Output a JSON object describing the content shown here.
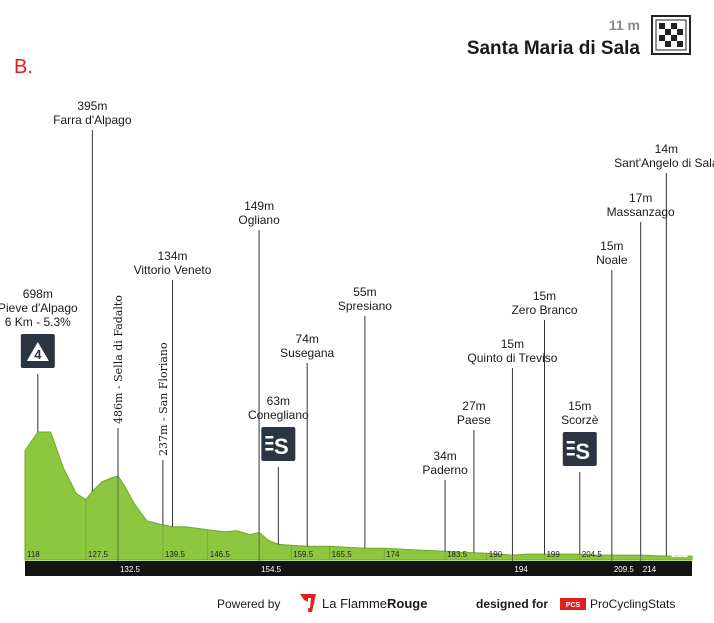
{
  "panel_marker": "B.",
  "finish": {
    "altitude": "11 m",
    "name": "Santa Maria di Sala",
    "icon": "checkered-flag-icon"
  },
  "footer": {
    "powered_by": "Powered by",
    "brand_light": "La Flamme",
    "brand_bold": "Rouge",
    "designed_for": "designed for",
    "pcs_badge": "PCS",
    "pcs_name": "ProCyclingStats"
  },
  "colors": {
    "profile": "#8dc63f",
    "profile_dark": "#6fa82a",
    "axis_bar": "#141414",
    "badge": "#2b3442",
    "marker": "#e0201b"
  },
  "chart_data": {
    "type": "area",
    "xlim": [
      118,
      222
    ],
    "profile_km": [
      118,
      120,
      122,
      124,
      126,
      127.5,
      128.5,
      130,
      131.5,
      132.5,
      133.5,
      135,
      137,
      139.5,
      141,
      143,
      146.5,
      149,
      151,
      152,
      153,
      154.5,
      156,
      157.5,
      159.5,
      162,
      165.5,
      168,
      171,
      174,
      177,
      180,
      183.5,
      186,
      190,
      192,
      194,
      196,
      199,
      202,
      204.5,
      207,
      209.5,
      212,
      214,
      218,
      222
    ],
    "profile_rel": [
      0.0,
      0.655,
      0.655,
      0.47,
      0.34,
      0.31,
      0.35,
      0.4,
      0.42,
      0.43,
      0.38,
      0.29,
      0.2,
      0.18,
      0.17,
      0.17,
      0.155,
      0.145,
      0.15,
      0.14,
      0.13,
      0.14,
      0.1,
      0.08,
      0.075,
      0.07,
      0.07,
      0.065,
      0.06,
      0.06,
      0.055,
      0.05,
      0.045,
      0.04,
      0.035,
      0.03,
      0.025,
      0.03,
      0.03,
      0.03,
      0.03,
      0.025,
      0.025,
      0.025,
      0.025,
      0.02,
      0.02
    ],
    "ticks_top": [
      "118",
      "127.5",
      "139.5",
      "146.5",
      "159.5",
      "165.5",
      "174",
      "183.5",
      "190",
      "199",
      "204.5"
    ],
    "ticks_bottom": [
      "132.5",
      "154.5",
      "194",
      "209.5",
      "214"
    ],
    "tick_end": "222",
    "waypoints": [
      {
        "km": 120,
        "lines": [
          "698m",
          "Pieve d'Alpago",
          "6 Km - 5.3%"
        ],
        "badge": "4",
        "badge_icon": "mountain-cat-4-icon"
      },
      {
        "km": 128.5,
        "lines": [
          "395m",
          "Farra d'Alpago"
        ]
      },
      {
        "km": 141,
        "lines": [
          "134m",
          "Vittorio Veneto"
        ]
      },
      {
        "km": 154.5,
        "lines": [
          "149m",
          "Ogliano"
        ]
      },
      {
        "km": 157.5,
        "lines": [
          "63m",
          "Conegliano"
        ],
        "badge": "S",
        "badge_icon": "sprint-icon"
      },
      {
        "km": 162,
        "lines": [
          "74m",
          "Susegana"
        ]
      },
      {
        "km": 171,
        "lines": [
          "55m",
          "Spresiano"
        ]
      },
      {
        "km": 183.5,
        "lines": [
          "34m",
          "Paderno"
        ]
      },
      {
        "km": 188,
        "lines": [
          "27m",
          "Paese"
        ]
      },
      {
        "km": 194,
        "lines": [
          "15m",
          "Quinto di Treviso"
        ]
      },
      {
        "km": 199,
        "lines": [
          "15m",
          "Zero Branco"
        ]
      },
      {
        "km": 204.5,
        "lines": [
          "15m",
          "Scorzè"
        ],
        "badge": "S",
        "badge_icon": "sprint-icon"
      },
      {
        "km": 209.5,
        "lines": [
          "15m",
          "Noale"
        ]
      },
      {
        "km": 214,
        "lines": [
          "17m",
          "Massanzago"
        ]
      },
      {
        "km": 218,
        "lines": [
          "14m",
          "Sant'Angelo di Sala"
        ]
      }
    ],
    "vertical_waypoints": [
      {
        "km": 132.5,
        "label": "486m - Sella di Fadalto"
      },
      {
        "km": 139.5,
        "label": "237m - San Floriano"
      }
    ]
  }
}
